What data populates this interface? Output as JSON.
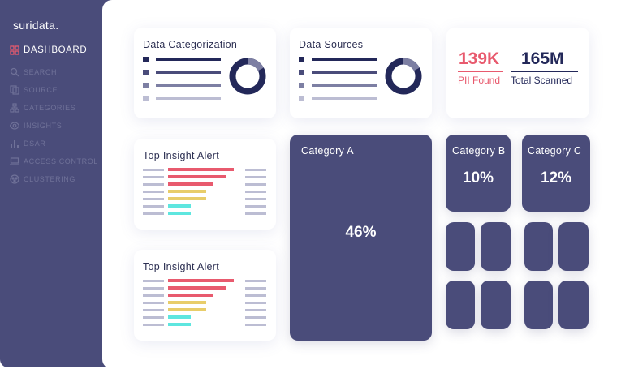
{
  "sidebar": {
    "logo": "suridata.",
    "items": [
      {
        "label": "DASHBOARD",
        "icon": "dashboard-grid-icon"
      },
      {
        "label": "SEARCH",
        "icon": "search-icon"
      },
      {
        "label": "SOURCE",
        "icon": "source-pages-icon"
      },
      {
        "label": "CATEGORIES",
        "icon": "categories-tree-icon"
      },
      {
        "label": "INSIGHTS",
        "icon": "eye-icon"
      },
      {
        "label": "DSAR",
        "icon": "bar-chart-icon"
      },
      {
        "label": "ACCESS CONTROL",
        "icon": "laptop-lock-icon"
      },
      {
        "label": "CLUSTERING",
        "icon": "cluster-icon"
      }
    ]
  },
  "cards": {
    "data_categorization": {
      "title": "Data Categorization"
    },
    "data_sources": {
      "title": "Data Sources"
    },
    "alert_1": {
      "title": "Top Insight Alert"
    },
    "alert_2": {
      "title": "Top Insight Alert"
    }
  },
  "stats": {
    "pii_found": {
      "value": "139K",
      "label": "PII Found"
    },
    "total_scanned": {
      "value": "165M",
      "label": "Total Scanned"
    }
  },
  "tiles": {
    "category_a": {
      "title": "Category A",
      "value": "46%"
    },
    "category_b": {
      "title": "Category B",
      "value": "10%"
    },
    "category_c": {
      "title": "Category C",
      "value": "12%"
    }
  },
  "colors": {
    "sidebar_bg": "#4a4c7a",
    "accent_red": "#e85a6e",
    "accent_yellow": "#e8cd6a",
    "accent_cyan": "#5ee6df",
    "navy": "#232859",
    "muted": "#bcbdd3"
  }
}
